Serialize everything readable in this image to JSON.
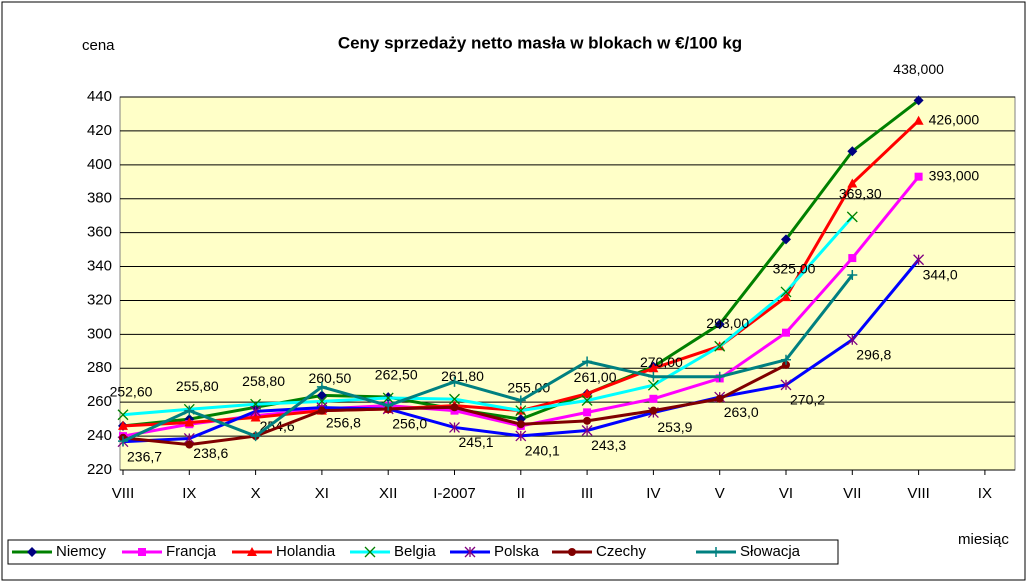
{
  "chart_data": {
    "type": "line",
    "title": "Ceny sprzedaży netto masła w blokach w €/100 kg",
    "y_label": "cena",
    "x_label": "miesiąc",
    "categories": [
      "VIII",
      "IX",
      "X",
      "XI",
      "XII",
      "I-2007",
      "II",
      "III",
      "IV",
      "V",
      "VI",
      "VII",
      "VIII",
      "IX"
    ],
    "ylim": [
      220,
      440
    ],
    "yticks": [
      220,
      240,
      260,
      280,
      300,
      320,
      340,
      360,
      380,
      400,
      420,
      440
    ],
    "grid": true,
    "legend": "bottom",
    "series": [
      {
        "name": "Niemcy",
        "color": "#008000",
        "marker_color": "#000080",
        "marker": "diamond",
        "values": [
          246,
          250,
          257,
          264,
          263,
          256,
          250,
          265,
          281,
          306,
          356,
          408,
          438,
          null
        ],
        "value_labels": [
          null,
          null,
          null,
          null,
          null,
          null,
          null,
          null,
          null,
          null,
          null,
          null,
          "438,000",
          null
        ]
      },
      {
        "name": "Francja",
        "color": "#ff00ff",
        "marker_color": "#ff00ff",
        "marker": "square",
        "values": [
          240,
          247,
          252,
          256,
          258,
          255,
          246,
          254,
          262,
          274,
          301,
          345,
          393,
          null
        ],
        "value_labels": [
          null,
          null,
          null,
          null,
          null,
          null,
          null,
          null,
          null,
          null,
          null,
          null,
          "393,000",
          null
        ]
      },
      {
        "name": "Holandia",
        "color": "#ff0000",
        "marker_color": "#ff0000",
        "marker": "triangle",
        "values": [
          246,
          248,
          251,
          255,
          256,
          258,
          255,
          265,
          280,
          293,
          322,
          389,
          426,
          null
        ],
        "value_labels": [
          null,
          null,
          null,
          null,
          null,
          null,
          null,
          null,
          null,
          null,
          null,
          null,
          "426,000",
          null
        ]
      },
      {
        "name": "Belgia",
        "color": "#00ffff",
        "marker_color": "#008000",
        "marker": "x",
        "values": [
          252.6,
          255.8,
          258.8,
          260.5,
          262.5,
          261.8,
          255,
          261,
          270,
          293,
          325,
          369.3,
          null,
          null
        ],
        "value_labels": [
          "252,60",
          "255,80",
          "258,80",
          "260,50",
          "262,50",
          "261,80",
          "255,00",
          "261,00",
          "270,00",
          "293,00",
          "325,00",
          "369,30",
          null,
          null
        ]
      },
      {
        "name": "Polska",
        "color": "#0000ff",
        "marker_color": "#800080",
        "marker": "star",
        "values": [
          236.7,
          238.6,
          254.6,
          256.8,
          256,
          245.1,
          240.1,
          243.3,
          253.9,
          263,
          270.2,
          296.8,
          344,
          null
        ],
        "value_labels": [
          "236,7",
          "238,6",
          "254,6",
          "256,8",
          "256,0",
          "245,1",
          "240,1",
          "243,3",
          "253,9",
          "263,0",
          "270,2",
          "296,8",
          "344,0",
          null
        ]
      },
      {
        "name": "Czechy",
        "color": "#800000",
        "marker_color": "#800000",
        "marker": "circle",
        "values": [
          239,
          235,
          240,
          255,
          256,
          257,
          247,
          249,
          255,
          262,
          282,
          null,
          null,
          null
        ]
      },
      {
        "name": "Słowacja",
        "color": "#008080",
        "marker_color": "#008080",
        "marker": "plus",
        "values": [
          237,
          255,
          240,
          269,
          258,
          272,
          261,
          284,
          275,
          275,
          285,
          335,
          null,
          null
        ]
      }
    ]
  }
}
